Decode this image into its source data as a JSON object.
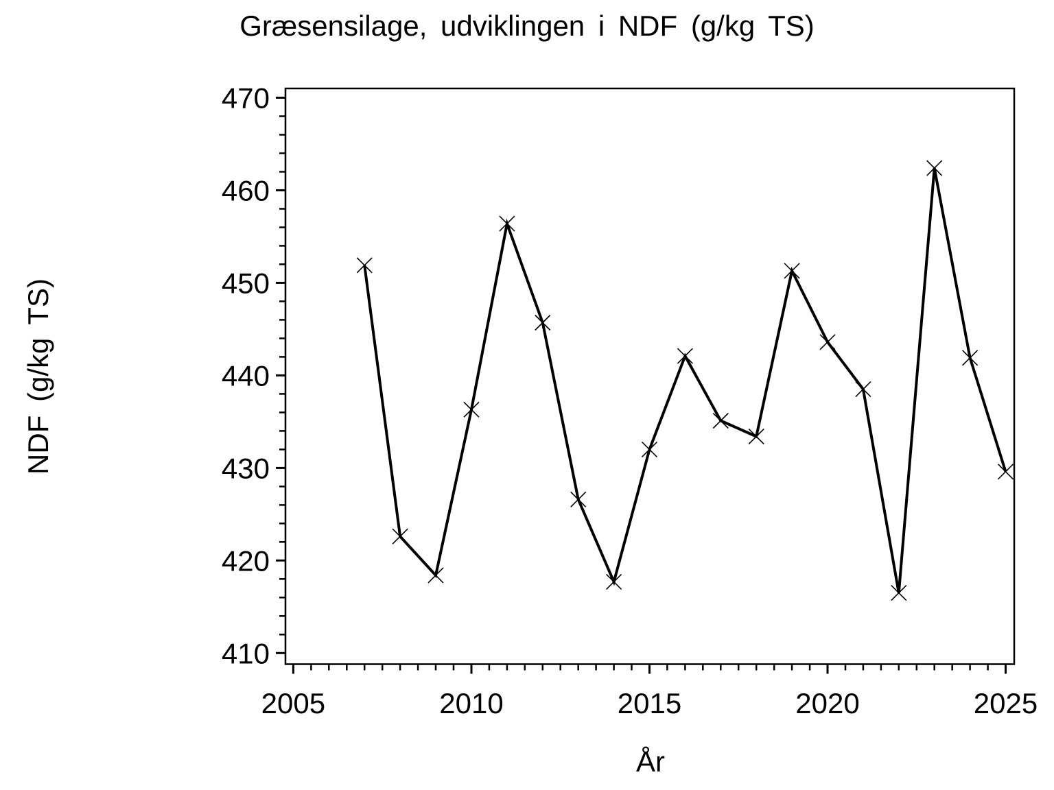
{
  "page": {
    "background": "#ffffff",
    "foreground": "#000000"
  },
  "chart_data": {
    "type": "line",
    "title": "Græsensilage, udviklingen i NDF (g/kg TS)",
    "xlabel": "År",
    "ylabel": "NDF (g/kg TS)",
    "grid": false,
    "legend": "none",
    "background": "#ffffff",
    "axis_color": "#000000",
    "series": [
      {
        "name": "NDF",
        "color": "#000000",
        "marker": "x",
        "x": [
          2007,
          2008,
          2009,
          2010,
          2011,
          2012,
          2013,
          2014,
          2015,
          2016,
          2017,
          2018,
          2019,
          2020,
          2021,
          2022,
          2023,
          2024,
          2025
        ],
        "y": [
          451.9,
          422.6,
          418.4,
          436.3,
          456.4,
          445.7,
          426.6,
          417.7,
          432.0,
          442.1,
          435.1,
          433.4,
          451.3,
          443.6,
          438.5,
          416.5,
          462.4,
          441.9,
          429.6
        ]
      }
    ],
    "xlim": [
      2004.78,
      2025.24
    ],
    "ylim": [
      408.8,
      471.0
    ],
    "x_ticks_major": [
      2005,
      2010,
      2015,
      2020,
      2025
    ],
    "x_tick_labels": [
      "2005",
      "2010",
      "2015",
      "2020",
      "2025"
    ],
    "x_tick_minor_step": 0.5,
    "y_ticks_major": [
      410,
      420,
      430,
      440,
      450,
      460,
      470
    ],
    "y_tick_labels": [
      "410",
      "420",
      "430",
      "440",
      "450",
      "460",
      "470"
    ],
    "y_tick_minor_step": 2
  }
}
